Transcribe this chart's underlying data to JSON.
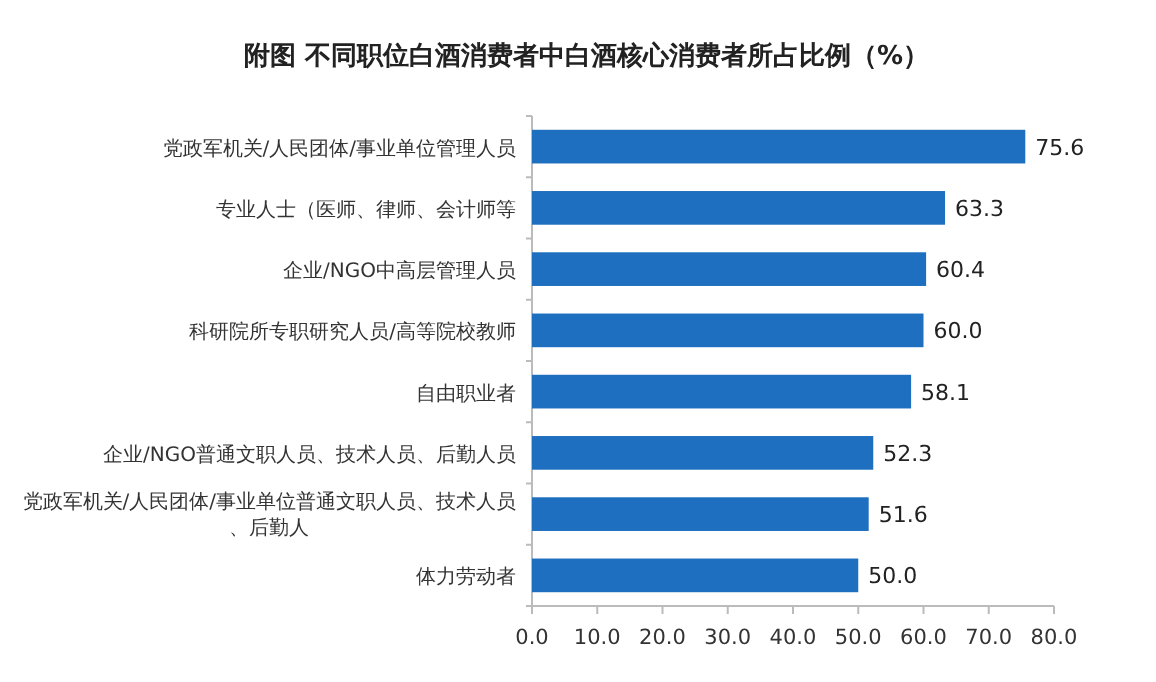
{
  "chart_data": {
    "type": "bar",
    "orientation": "horizontal",
    "title": "附图 不同职位白酒消费者中白酒核心消费者所占比例（%）",
    "categories": [
      "党政军机关/人民团体/事业单位管理人员",
      "专业人士（医师、律师、会计师等",
      "企业/NGO中高层管理人员",
      "科研院所专职研究人员/高等院校教师",
      "自由职业者",
      "企业/NGO普通文职人员、技术人员、后勤人员",
      "党政军机关/人民团体/事业单位普通文职人员、技术人员、后勤人",
      "体力劳动者"
    ],
    "values": [
      75.6,
      63.3,
      60.4,
      60.0,
      58.1,
      52.3,
      51.6,
      50.0
    ],
    "color": "#1f6fc0",
    "value_labels": [
      "75.6",
      "63.3",
      "60.4",
      "60.0",
      "58.1",
      "52.3",
      "51.6",
      "50.0"
    ],
    "xlim": [
      0,
      80
    ],
    "xticks": [
      {
        "value": 0,
        "label": "0.0"
      },
      {
        "value": 10,
        "label": "10.0"
      },
      {
        "value": 20,
        "label": "20.0"
      },
      {
        "value": 30,
        "label": "30.0"
      },
      {
        "value": 40,
        "label": "40.0"
      },
      {
        "value": 50,
        "label": "50.0"
      },
      {
        "value": 60,
        "label": "60.0"
      },
      {
        "value": 70,
        "label": "70.0"
      },
      {
        "value": 80,
        "label": "80.0"
      }
    ]
  }
}
